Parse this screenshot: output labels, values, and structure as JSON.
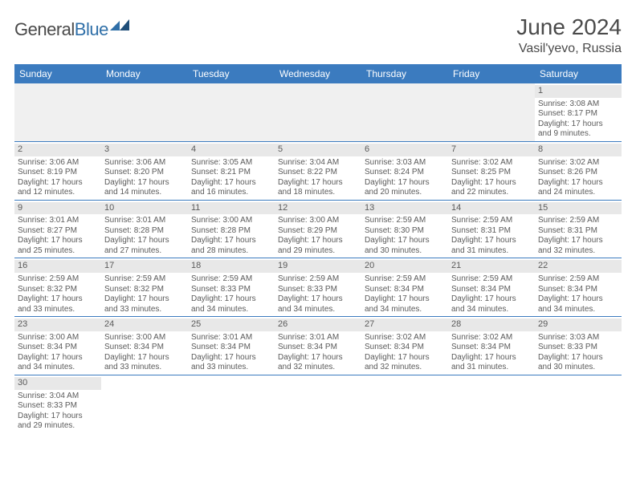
{
  "logo": {
    "general": "General",
    "blue": "Blue"
  },
  "title": "June 2024",
  "location": "Vasil'yevo, Russia",
  "colors": {
    "header_bg": "#3b7bbf",
    "header_text": "#ffffff",
    "daynum_bg": "#e8e8e8",
    "text": "#5a5a5a",
    "row_border": "#3b7bbf",
    "logo_blue": "#2f6fa8",
    "logo_gray": "#4a4a4a"
  },
  "weekdays": [
    "Sunday",
    "Monday",
    "Tuesday",
    "Wednesday",
    "Thursday",
    "Friday",
    "Saturday"
  ],
  "weeks": [
    [
      null,
      null,
      null,
      null,
      null,
      null,
      {
        "n": "1",
        "sr": "Sunrise: 3:08 AM",
        "ss": "Sunset: 8:17 PM",
        "d1": "Daylight: 17 hours",
        "d2": "and 9 minutes."
      }
    ],
    [
      {
        "n": "2",
        "sr": "Sunrise: 3:06 AM",
        "ss": "Sunset: 8:19 PM",
        "d1": "Daylight: 17 hours",
        "d2": "and 12 minutes."
      },
      {
        "n": "3",
        "sr": "Sunrise: 3:06 AM",
        "ss": "Sunset: 8:20 PM",
        "d1": "Daylight: 17 hours",
        "d2": "and 14 minutes."
      },
      {
        "n": "4",
        "sr": "Sunrise: 3:05 AM",
        "ss": "Sunset: 8:21 PM",
        "d1": "Daylight: 17 hours",
        "d2": "and 16 minutes."
      },
      {
        "n": "5",
        "sr": "Sunrise: 3:04 AM",
        "ss": "Sunset: 8:22 PM",
        "d1": "Daylight: 17 hours",
        "d2": "and 18 minutes."
      },
      {
        "n": "6",
        "sr": "Sunrise: 3:03 AM",
        "ss": "Sunset: 8:24 PM",
        "d1": "Daylight: 17 hours",
        "d2": "and 20 minutes."
      },
      {
        "n": "7",
        "sr": "Sunrise: 3:02 AM",
        "ss": "Sunset: 8:25 PM",
        "d1": "Daylight: 17 hours",
        "d2": "and 22 minutes."
      },
      {
        "n": "8",
        "sr": "Sunrise: 3:02 AM",
        "ss": "Sunset: 8:26 PM",
        "d1": "Daylight: 17 hours",
        "d2": "and 24 minutes."
      }
    ],
    [
      {
        "n": "9",
        "sr": "Sunrise: 3:01 AM",
        "ss": "Sunset: 8:27 PM",
        "d1": "Daylight: 17 hours",
        "d2": "and 25 minutes."
      },
      {
        "n": "10",
        "sr": "Sunrise: 3:01 AM",
        "ss": "Sunset: 8:28 PM",
        "d1": "Daylight: 17 hours",
        "d2": "and 27 minutes."
      },
      {
        "n": "11",
        "sr": "Sunrise: 3:00 AM",
        "ss": "Sunset: 8:28 PM",
        "d1": "Daylight: 17 hours",
        "d2": "and 28 minutes."
      },
      {
        "n": "12",
        "sr": "Sunrise: 3:00 AM",
        "ss": "Sunset: 8:29 PM",
        "d1": "Daylight: 17 hours",
        "d2": "and 29 minutes."
      },
      {
        "n": "13",
        "sr": "Sunrise: 2:59 AM",
        "ss": "Sunset: 8:30 PM",
        "d1": "Daylight: 17 hours",
        "d2": "and 30 minutes."
      },
      {
        "n": "14",
        "sr": "Sunrise: 2:59 AM",
        "ss": "Sunset: 8:31 PM",
        "d1": "Daylight: 17 hours",
        "d2": "and 31 minutes."
      },
      {
        "n": "15",
        "sr": "Sunrise: 2:59 AM",
        "ss": "Sunset: 8:31 PM",
        "d1": "Daylight: 17 hours",
        "d2": "and 32 minutes."
      }
    ],
    [
      {
        "n": "16",
        "sr": "Sunrise: 2:59 AM",
        "ss": "Sunset: 8:32 PM",
        "d1": "Daylight: 17 hours",
        "d2": "and 33 minutes."
      },
      {
        "n": "17",
        "sr": "Sunrise: 2:59 AM",
        "ss": "Sunset: 8:32 PM",
        "d1": "Daylight: 17 hours",
        "d2": "and 33 minutes."
      },
      {
        "n": "18",
        "sr": "Sunrise: 2:59 AM",
        "ss": "Sunset: 8:33 PM",
        "d1": "Daylight: 17 hours",
        "d2": "and 34 minutes."
      },
      {
        "n": "19",
        "sr": "Sunrise: 2:59 AM",
        "ss": "Sunset: 8:33 PM",
        "d1": "Daylight: 17 hours",
        "d2": "and 34 minutes."
      },
      {
        "n": "20",
        "sr": "Sunrise: 2:59 AM",
        "ss": "Sunset: 8:34 PM",
        "d1": "Daylight: 17 hours",
        "d2": "and 34 minutes."
      },
      {
        "n": "21",
        "sr": "Sunrise: 2:59 AM",
        "ss": "Sunset: 8:34 PM",
        "d1": "Daylight: 17 hours",
        "d2": "and 34 minutes."
      },
      {
        "n": "22",
        "sr": "Sunrise: 2:59 AM",
        "ss": "Sunset: 8:34 PM",
        "d1": "Daylight: 17 hours",
        "d2": "and 34 minutes."
      }
    ],
    [
      {
        "n": "23",
        "sr": "Sunrise: 3:00 AM",
        "ss": "Sunset: 8:34 PM",
        "d1": "Daylight: 17 hours",
        "d2": "and 34 minutes."
      },
      {
        "n": "24",
        "sr": "Sunrise: 3:00 AM",
        "ss": "Sunset: 8:34 PM",
        "d1": "Daylight: 17 hours",
        "d2": "and 33 minutes."
      },
      {
        "n": "25",
        "sr": "Sunrise: 3:01 AM",
        "ss": "Sunset: 8:34 PM",
        "d1": "Daylight: 17 hours",
        "d2": "and 33 minutes."
      },
      {
        "n": "26",
        "sr": "Sunrise: 3:01 AM",
        "ss": "Sunset: 8:34 PM",
        "d1": "Daylight: 17 hours",
        "d2": "and 32 minutes."
      },
      {
        "n": "27",
        "sr": "Sunrise: 3:02 AM",
        "ss": "Sunset: 8:34 PM",
        "d1": "Daylight: 17 hours",
        "d2": "and 32 minutes."
      },
      {
        "n": "28",
        "sr": "Sunrise: 3:02 AM",
        "ss": "Sunset: 8:34 PM",
        "d1": "Daylight: 17 hours",
        "d2": "and 31 minutes."
      },
      {
        "n": "29",
        "sr": "Sunrise: 3:03 AM",
        "ss": "Sunset: 8:33 PM",
        "d1": "Daylight: 17 hours",
        "d2": "and 30 minutes."
      }
    ],
    [
      {
        "n": "30",
        "sr": "Sunrise: 3:04 AM",
        "ss": "Sunset: 8:33 PM",
        "d1": "Daylight: 17 hours",
        "d2": "and 29 minutes."
      },
      null,
      null,
      null,
      null,
      null,
      null
    ]
  ]
}
